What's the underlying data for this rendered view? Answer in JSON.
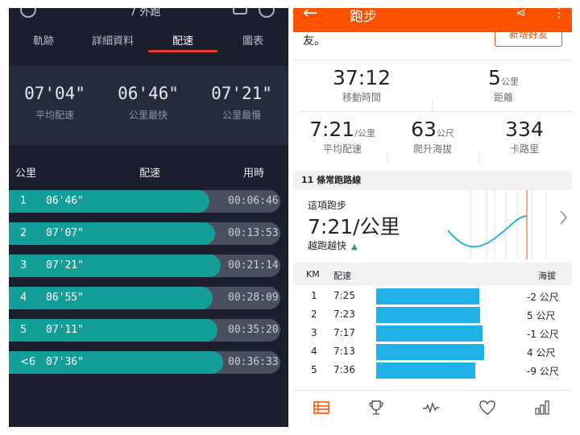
{
  "left_panel": {
    "title": "7 外跑",
    "tabs": [
      {
        "label": "軌跡"
      },
      {
        "label": "詳細資料"
      },
      {
        "label": "配速"
      },
      {
        "label": "圖表"
      }
    ],
    "summary": [
      {
        "value": "07'04\"",
        "label": "平均配速"
      },
      {
        "value": "06'46\"",
        "label": "公里最快"
      },
      {
        "value": "07'21\"",
        "label": "公里最慢"
      }
    ],
    "table_header": {
      "km": "公里",
      "pace": "配速",
      "time": "用時"
    },
    "splits": [
      {
        "km": "1",
        "pace": "06'46\"",
        "time": "00:06:46",
        "fill": 0.74
      },
      {
        "km": "2",
        "pace": "07'07\"",
        "time": "00:13:53",
        "fill": 0.76
      },
      {
        "km": "3",
        "pace": "07'21\"",
        "time": "00:21:14",
        "fill": 0.78
      },
      {
        "km": "4",
        "pace": "06'55\"",
        "time": "00:28:09",
        "fill": 0.75
      },
      {
        "km": "5",
        "pace": "07'11\"",
        "time": "00:35:20",
        "fill": 0.77
      },
      {
        "km": "<6",
        "pace": "07'36\"",
        "time": "00:36:33",
        "fill": 0.79
      }
    ],
    "colors": {
      "background": "#1b1f2d",
      "summary_bg": "#262b3b",
      "bar_fill": "#139e9a",
      "bar_track": "#4a4f5e",
      "tab_underline": "#e83e2f"
    }
  },
  "right_panel": {
    "header": {
      "back_icon": "arrow-left-icon",
      "title": "跑步",
      "share_icon": "share-icon",
      "more_icon": "more-vertical-icon"
    },
    "add_friend_button": "新增好友",
    "friend_text": "友。",
    "stats_row1": [
      {
        "value": "37:12",
        "unit": "",
        "label": "移動時間"
      },
      {
        "value": "5",
        "unit": "公里",
        "label": "距離"
      }
    ],
    "stats_row2": [
      {
        "value": "7:21",
        "unit": "/公里",
        "label": "平均配速"
      },
      {
        "value": "63",
        "unit": "公尺",
        "label": "爬升海拔"
      },
      {
        "value": "334",
        "unit": "",
        "label": "卡路里"
      }
    ],
    "section_title": "11 條常跑路線",
    "compare": {
      "label": "這項跑步",
      "value": "7:21/公里",
      "trend": "越跑越快",
      "trend_icon": "triangle-up-icon"
    },
    "splits_header": {
      "km": "KM",
      "pace": "配速",
      "elevation": "海拔"
    },
    "splits": [
      {
        "km": "1",
        "pace": "7:25",
        "elevation": "-2 公尺",
        "bar": 0.85
      },
      {
        "km": "2",
        "pace": "7:23",
        "elevation": "5 公尺",
        "bar": 0.86
      },
      {
        "km": "3",
        "pace": "7:17",
        "elevation": "-1 公尺",
        "bar": 0.88
      },
      {
        "km": "4",
        "pace": "7:13",
        "elevation": "4 公尺",
        "bar": 0.89
      },
      {
        "km": "5",
        "pace": "7:36",
        "elevation": "-9 公尺",
        "bar": 0.82
      }
    ],
    "tabbar": [
      {
        "icon": "list-icon",
        "active": true
      },
      {
        "icon": "trophy-icon",
        "active": false
      },
      {
        "icon": "activity-icon",
        "active": false
      },
      {
        "icon": "heart-icon",
        "active": false
      },
      {
        "icon": "bar-chart-icon",
        "active": false
      }
    ],
    "colors": {
      "accent": "#fc5200",
      "bar": "#1fb1e8",
      "trend": "#2ea84a"
    }
  }
}
